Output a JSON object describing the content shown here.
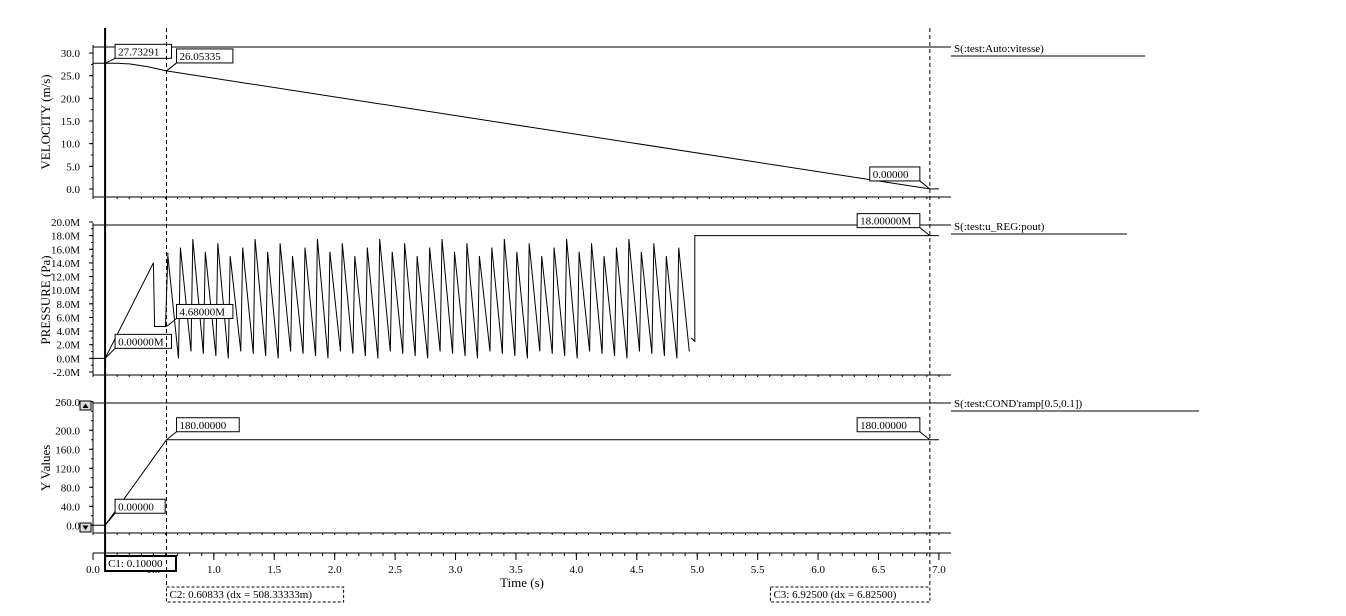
{
  "window": {
    "background": "#ffffff",
    "line_color": "#000000"
  },
  "cursors": [
    {
      "id": "C1",
      "label": "C1: 0.10000",
      "x": 0.1
    },
    {
      "id": "C2",
      "label": "C2: 0.60833 (dx = 508.33333m)",
      "x": 0.60833
    },
    {
      "id": "C3",
      "label": "C3: 6.92500 (dx = 6.82500)",
      "x": 6.925
    }
  ],
  "chart_data": [
    {
      "type": "line",
      "name": "velocity",
      "ylabel": "VELOCITY (m/s)",
      "ylim": [
        -2,
        32
      ],
      "yticks": [
        "0.0",
        "5.0",
        "10.0",
        "15.0",
        "20.0",
        "25.0",
        "30.0"
      ],
      "ytick_values": [
        0,
        5,
        10,
        15,
        20,
        25,
        30
      ],
      "legend": "S(:test:Auto:vitesse)",
      "series": [
        {
          "name": "S(:test:Auto:vitesse)",
          "x": [
            0.0,
            0.1,
            0.2,
            0.3,
            0.45,
            0.60833,
            6.925,
            7.0
          ],
          "y": [
            27.73291,
            27.73291,
            27.75,
            27.6,
            27.0,
            26.05335,
            0.0,
            0.0
          ]
        }
      ],
      "annotations": [
        {
          "text": "27.73291",
          "x": 0.1,
          "y": 27.73291
        },
        {
          "text": "26.05335",
          "x": 0.60833,
          "y": 26.05335
        },
        {
          "text": "0.00000",
          "x": 6.925,
          "y": 0.0
        }
      ]
    },
    {
      "type": "line",
      "name": "pressure",
      "ylabel": "PRESSURE (Pa)",
      "ylim": [
        -2.0,
        20.0
      ],
      "yticks": [
        "-2.0M",
        "0.0M",
        "2.0M",
        "4.0M",
        "6.0M",
        "8.0M",
        "10.0M",
        "12.0M",
        "14.0M",
        "16.0M",
        "18.0M",
        "20.0M"
      ],
      "ytick_values": [
        -2,
        0,
        2,
        4,
        6,
        8,
        10,
        12,
        14,
        16,
        18,
        20
      ],
      "legend": "S(:test:u_REG:pout)",
      "sawtooth": {
        "start": 0.62,
        "end": 4.95,
        "teeth": 42,
        "peak_min": 15.0,
        "peak_max": 17.5,
        "valley_min": 0.0,
        "valley_max": 1.0
      },
      "series": [
        {
          "name": "S(:test:u_REG:pout)",
          "x": [
            0.0,
            0.1,
            0.5,
            0.51,
            0.6,
            0.62
          ],
          "y": [
            0.0,
            0.0,
            14.0,
            4.68,
            4.68,
            15.5
          ]
        },
        {
          "name": "S(:test:u_REG:pout) tail",
          "x": [
            4.95,
            4.98,
            4.98,
            7.0
          ],
          "y": [
            3.0,
            2.5,
            18.0,
            18.0
          ]
        }
      ],
      "annotations": [
        {
          "text": "0.00000M",
          "x": 0.1,
          "y": 0.0
        },
        {
          "text": "4.68000M",
          "x": 0.60833,
          "y": 4.68
        },
        {
          "text": "18.00000M",
          "x": 6.925,
          "y": 18.0
        }
      ]
    },
    {
      "type": "line",
      "name": "yvalues",
      "ylabel": "Y Values",
      "ylim": [
        -10,
        270
      ],
      "yticks": [
        "0.0",
        "40.0",
        "80.0",
        "120.0",
        "160.0",
        "200.0",
        "260.0"
      ],
      "ytick_values": [
        0,
        40,
        80,
        120,
        160,
        200,
        260
      ],
      "legend": "S(:test:COND'ramp[0.5,0.1])",
      "series": [
        {
          "name": "S(:test:COND'ramp[0.5,0.1])",
          "x": [
            0.0,
            0.1,
            0.60833,
            7.0
          ],
          "y": [
            0.0,
            0.0,
            180.0,
            180.0
          ]
        }
      ],
      "annotations": [
        {
          "text": "0.00000",
          "x": 0.1,
          "y": 0.0
        },
        {
          "text": "180.00000",
          "x": 0.60833,
          "y": 180.0
        },
        {
          "text": "180.00000",
          "x": 6.925,
          "y": 180.0
        }
      ]
    }
  ],
  "x_axis": {
    "label": "Time (s)",
    "xlim": [
      0.0,
      7.1
    ],
    "ticks": [
      "0.0",
      "0.5",
      "1.0",
      "1.5",
      "2.0",
      "2.5",
      "3.0",
      "3.5",
      "4.0",
      "4.5",
      "5.0",
      "5.5",
      "6.0",
      "6.5",
      "7.0"
    ],
    "tick_values": [
      0.0,
      0.5,
      1.0,
      1.5,
      2.0,
      2.5,
      3.0,
      3.5,
      4.0,
      4.5,
      5.0,
      5.5,
      6.0,
      6.5,
      7.0
    ]
  },
  "scroll_buttons": {
    "up": "▲",
    "down": "▼"
  }
}
